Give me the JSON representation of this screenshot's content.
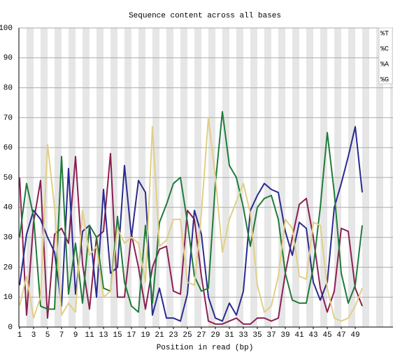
{
  "chart_data": {
    "type": "line",
    "title": "Sequence content across all bases",
    "x_label": "Position in read (bp)",
    "x": [
      1,
      2,
      3,
      4,
      5,
      6,
      7,
      8,
      9,
      10,
      11,
      12,
      13,
      14,
      15,
      16,
      17,
      18,
      19,
      20,
      21,
      22,
      23,
      24,
      25,
      26,
      27,
      28,
      29,
      30,
      31,
      32,
      33,
      34,
      35,
      36,
      37,
      38,
      39,
      40,
      41,
      42,
      43,
      44,
      45,
      46,
      47,
      48,
      49,
      50
    ],
    "xlim": [
      0.9,
      54.4
    ],
    "xticks": [
      1,
      3,
      5,
      7,
      9,
      11,
      13,
      15,
      17,
      19,
      21,
      23,
      25,
      27,
      29,
      31,
      33,
      35,
      37,
      39,
      41,
      43,
      45,
      47,
      49
    ],
    "ylim": [
      0,
      100
    ],
    "yticks": [
      0,
      10,
      20,
      30,
      40,
      50,
      60,
      70,
      80,
      90,
      100
    ],
    "grid": true,
    "legend_position": "top-right",
    "series": [
      {
        "name": "%T",
        "color": "#8b1f52",
        "values": [
          50,
          4,
          35,
          49,
          3,
          31,
          33,
          28,
          57,
          21,
          6,
          30,
          32,
          58,
          10,
          10,
          31,
          20,
          6,
          20,
          26,
          27,
          12,
          11,
          39,
          36,
          17,
          2,
          1,
          1,
          2,
          3,
          1,
          1,
          3,
          3,
          2,
          3,
          18,
          30,
          41,
          43,
          30,
          13,
          5,
          12,
          33,
          32,
          13,
          7
        ]
      },
      {
        "name": "%C",
        "color": "#2a2a8e",
        "values": [
          14,
          31,
          39,
          36,
          30,
          25,
          7,
          53,
          11,
          32,
          34,
          10,
          46,
          18,
          20,
          54,
          30,
          49,
          45,
          4,
          13,
          3,
          3,
          2,
          11,
          39,
          31,
          10,
          3,
          2,
          8,
          4,
          12,
          39,
          44,
          48,
          46,
          45,
          32,
          24,
          35,
          33,
          15,
          9,
          15,
          40,
          48,
          57,
          67,
          45
        ]
      },
      {
        "name": "%A",
        "color": "#1e7b3a",
        "values": [
          30,
          48,
          37,
          7,
          6,
          6,
          57,
          11,
          28,
          8,
          34,
          30,
          13,
          12,
          37,
          15,
          7,
          5,
          34,
          8,
          35,
          41,
          48,
          50,
          35,
          17,
          12,
          13,
          48,
          72,
          54,
          50,
          40,
          27,
          40,
          43,
          44,
          36,
          18,
          9,
          8,
          8,
          20,
          40,
          65,
          45,
          18,
          8,
          14,
          34
        ]
      },
      {
        "name": "%G",
        "color": "#e0cf85",
        "values": [
          7,
          17,
          3,
          10,
          61,
          40,
          4,
          8,
          5,
          39,
          24,
          27,
          10,
          12,
          33,
          28,
          30,
          28,
          15,
          67,
          27,
          29,
          36,
          36,
          15,
          14,
          38,
          70,
          50,
          25,
          36,
          42,
          48,
          38,
          14,
          5,
          7,
          17,
          36,
          33,
          17,
          16,
          35,
          34,
          13,
          3,
          2,
          3,
          7,
          13
        ]
      }
    ]
  }
}
